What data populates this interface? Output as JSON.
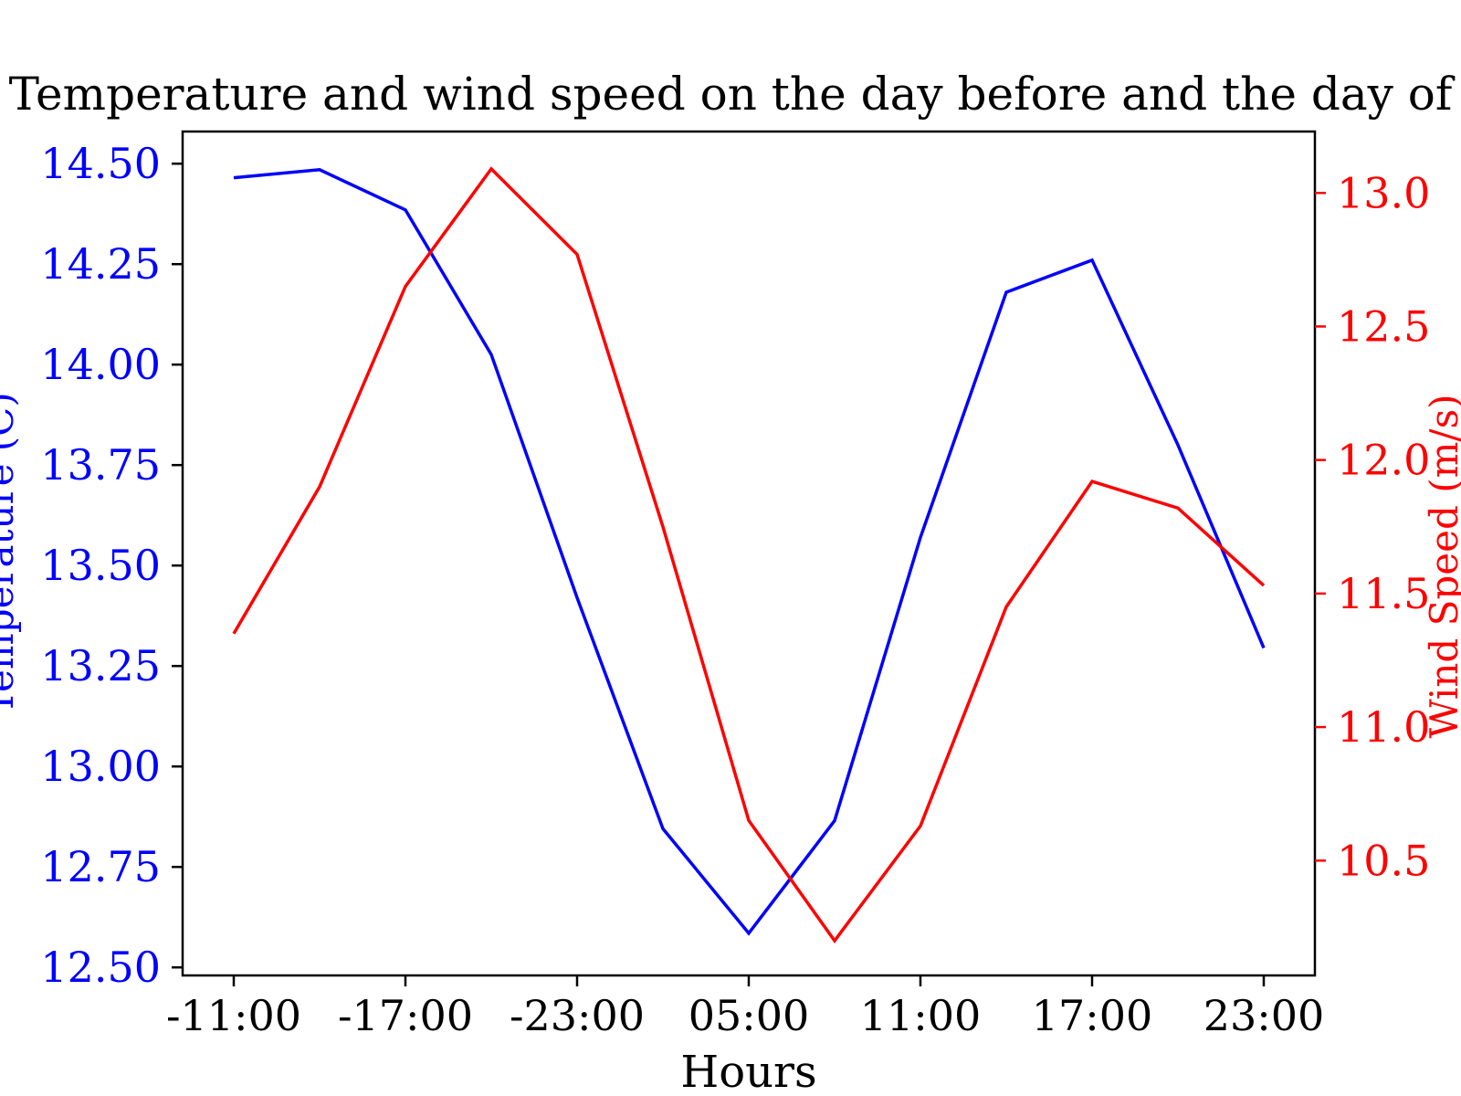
{
  "chart_data": {
    "type": "line",
    "title": "Temperature and wind speed on the day before and the day of",
    "xlabel": "Hours",
    "ylabel_left": "Temperature (C)",
    "ylabel_right": "Wind Speed (m/s)",
    "x_tick_labels": [
      "-11:00",
      "-17:00",
      "-23:00",
      "05:00",
      "11:00",
      "17:00",
      "23:00"
    ],
    "y_left_lim": [
      12.48,
      14.58
    ],
    "y_left_ticks": [
      12.5,
      12.75,
      13.0,
      13.25,
      13.5,
      13.75,
      14.0,
      14.25,
      14.5
    ],
    "y_left_tick_labels": [
      "12.50",
      "12.75",
      "13.00",
      "13.25",
      "13.50",
      "13.75",
      "14.00",
      "14.25",
      "14.50"
    ],
    "y_right_lim": [
      10.07,
      13.23
    ],
    "y_right_ticks": [
      10.5,
      11.0,
      11.5,
      12.0,
      12.5,
      13.0
    ],
    "y_right_tick_labels": [
      "10.5",
      "11.0",
      "11.5",
      "12.0",
      "12.5",
      "13.0"
    ],
    "grid": false,
    "series": [
      {
        "name": "Temperature (C)",
        "axis": "left",
        "color": "#0000ff",
        "values": [
          14.465,
          14.485,
          14.385,
          14.025,
          13.42,
          12.845,
          12.585,
          12.865,
          13.57,
          14.18,
          14.26,
          13.8,
          13.295
        ]
      },
      {
        "name": "Wind Speed (m/s)",
        "axis": "right",
        "color": "#ff0000",
        "values": [
          11.35,
          11.9,
          12.65,
          13.09,
          12.77,
          11.75,
          10.65,
          10.2,
          10.63,
          11.45,
          11.92,
          11.82,
          11.53
        ]
      }
    ]
  }
}
